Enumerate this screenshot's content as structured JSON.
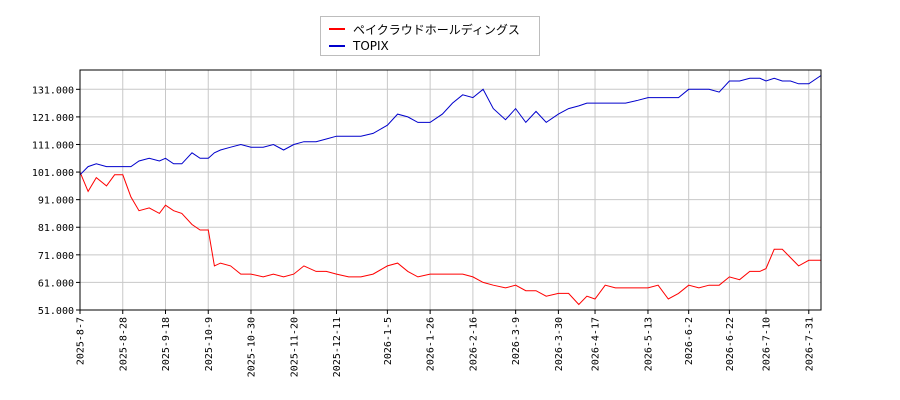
{
  "chart_data": {
    "type": "line",
    "title": "",
    "xlabel": "",
    "ylabel": "",
    "ylim": [
      51,
      138
    ],
    "grid": true,
    "legend_position": "top-center",
    "x_start": "2025-8-7",
    "x_end": "2026-8-6",
    "x_tick_labels": [
      "2025-8-7",
      "2025-8-28",
      "2025-9-18",
      "2025-10-9",
      "2025-10-30",
      "2025-11-20",
      "2025-12-11",
      "2026-1-5",
      "2026-1-26",
      "2026-2-16",
      "2026-3-9",
      "2026-3-30",
      "2026-4-17",
      "2026-5-13",
      "2026-6-2",
      "2026-6-22",
      "2026-7-10",
      "2026-7-31"
    ],
    "y_tick_labels": [
      "51.000",
      "61.000",
      "71.000",
      "81.000",
      "91.000",
      "101.000",
      "111.000",
      "121.000",
      "131.000"
    ],
    "y_tick_values": [
      51,
      61,
      71,
      81,
      91,
      101,
      111,
      121,
      131
    ],
    "series": [
      {
        "name": "ペイクラウドホールディングス",
        "color": "#ff0000",
        "x": [
          "2025-8-7",
          "2025-8-11",
          "2025-8-15",
          "2025-8-20",
          "2025-8-24",
          "2025-8-28",
          "2025-9-1",
          "2025-9-5",
          "2025-9-10",
          "2025-9-15",
          "2025-9-18",
          "2025-9-22",
          "2025-9-26",
          "2025-10-1",
          "2025-10-5",
          "2025-10-9",
          "2025-10-12",
          "2025-10-15",
          "2025-10-20",
          "2025-10-25",
          "2025-10-30",
          "2025-11-5",
          "2025-11-10",
          "2025-11-15",
          "2025-11-20",
          "2025-11-25",
          "2025-12-1",
          "2025-12-6",
          "2025-12-11",
          "2025-12-17",
          "2025-12-23",
          "2025-12-29",
          "2026-1-5",
          "2026-1-10",
          "2026-1-15",
          "2026-1-20",
          "2026-1-26",
          "2026-2-1",
          "2026-2-6",
          "2026-2-11",
          "2026-2-16",
          "2026-2-21",
          "2026-2-26",
          "2026-3-4",
          "2026-3-9",
          "2026-3-14",
          "2026-3-19",
          "2026-3-24",
          "2026-3-30",
          "2026-4-4",
          "2026-4-9",
          "2026-4-13",
          "2026-4-17",
          "2026-4-22",
          "2026-4-27",
          "2026-5-2",
          "2026-5-8",
          "2026-5-13",
          "2026-5-18",
          "2026-5-23",
          "2026-5-28",
          "2026-6-2",
          "2026-6-7",
          "2026-6-12",
          "2026-6-17",
          "2026-6-22",
          "2026-6-27",
          "2026-7-2",
          "2026-7-7",
          "2026-7-10",
          "2026-7-14",
          "2026-7-18",
          "2026-7-22",
          "2026-7-26",
          "2026-7-31",
          "2026-8-6"
        ],
        "y": [
          101,
          94,
          99,
          96,
          100,
          100,
          92,
          87,
          88,
          86,
          89,
          87,
          86,
          82,
          80,
          80,
          67,
          68,
          67,
          64,
          64,
          63,
          64,
          63,
          64,
          67,
          65,
          65,
          64,
          63,
          63,
          64,
          67,
          68,
          65,
          63,
          64,
          64,
          64,
          64,
          63,
          61,
          60,
          59,
          60,
          58,
          58,
          56,
          57,
          57,
          53,
          56,
          55,
          60,
          59,
          59,
          59,
          59,
          60,
          55,
          57,
          60,
          59,
          60,
          60,
          63,
          62,
          65,
          65,
          66,
          73,
          73,
          70,
          67,
          69,
          69
        ]
      },
      {
        "name": "TOPIX",
        "color": "#0000cc",
        "x": [
          "2025-8-7",
          "2025-8-11",
          "2025-8-15",
          "2025-8-20",
          "2025-8-24",
          "2025-8-28",
          "2025-9-1",
          "2025-9-5",
          "2025-9-10",
          "2025-9-15",
          "2025-9-18",
          "2025-9-22",
          "2025-9-26",
          "2025-10-1",
          "2025-10-5",
          "2025-10-9",
          "2025-10-12",
          "2025-10-15",
          "2025-10-20",
          "2025-10-25",
          "2025-10-30",
          "2025-11-5",
          "2025-11-10",
          "2025-11-15",
          "2025-11-20",
          "2025-11-25",
          "2025-12-1",
          "2025-12-6",
          "2025-12-11",
          "2025-12-17",
          "2025-12-23",
          "2025-12-29",
          "2026-1-5",
          "2026-1-10",
          "2026-1-15",
          "2026-1-20",
          "2026-1-26",
          "2026-2-1",
          "2026-2-6",
          "2026-2-11",
          "2026-2-16",
          "2026-2-21",
          "2026-2-26",
          "2026-3-4",
          "2026-3-9",
          "2026-3-14",
          "2026-3-19",
          "2026-3-24",
          "2026-3-30",
          "2026-4-4",
          "2026-4-9",
          "2026-4-13",
          "2026-4-17",
          "2026-4-22",
          "2026-4-27",
          "2026-5-2",
          "2026-5-8",
          "2026-5-13",
          "2026-5-18",
          "2026-5-23",
          "2026-5-28",
          "2026-6-2",
          "2026-6-7",
          "2026-6-12",
          "2026-6-17",
          "2026-6-22",
          "2026-6-27",
          "2026-7-2",
          "2026-7-7",
          "2026-7-10",
          "2026-7-14",
          "2026-7-18",
          "2026-7-22",
          "2026-7-26",
          "2026-7-31",
          "2026-8-6"
        ],
        "y": [
          100,
          103,
          104,
          103,
          103,
          103,
          103,
          105,
          106,
          105,
          106,
          104,
          104,
          108,
          106,
          106,
          108,
          109,
          110,
          111,
          110,
          110,
          111,
          109,
          111,
          112,
          112,
          113,
          114,
          114,
          114,
          115,
          118,
          122,
          121,
          119,
          119,
          122,
          126,
          129,
          128,
          131,
          124,
          120,
          124,
          119,
          123,
          119,
          122,
          124,
          125,
          126,
          126,
          126,
          126,
          126,
          127,
          128,
          128,
          128,
          128,
          131,
          131,
          131,
          130,
          134,
          134,
          135,
          135,
          134,
          135,
          134,
          134,
          133,
          133,
          136
        ]
      }
    ]
  }
}
